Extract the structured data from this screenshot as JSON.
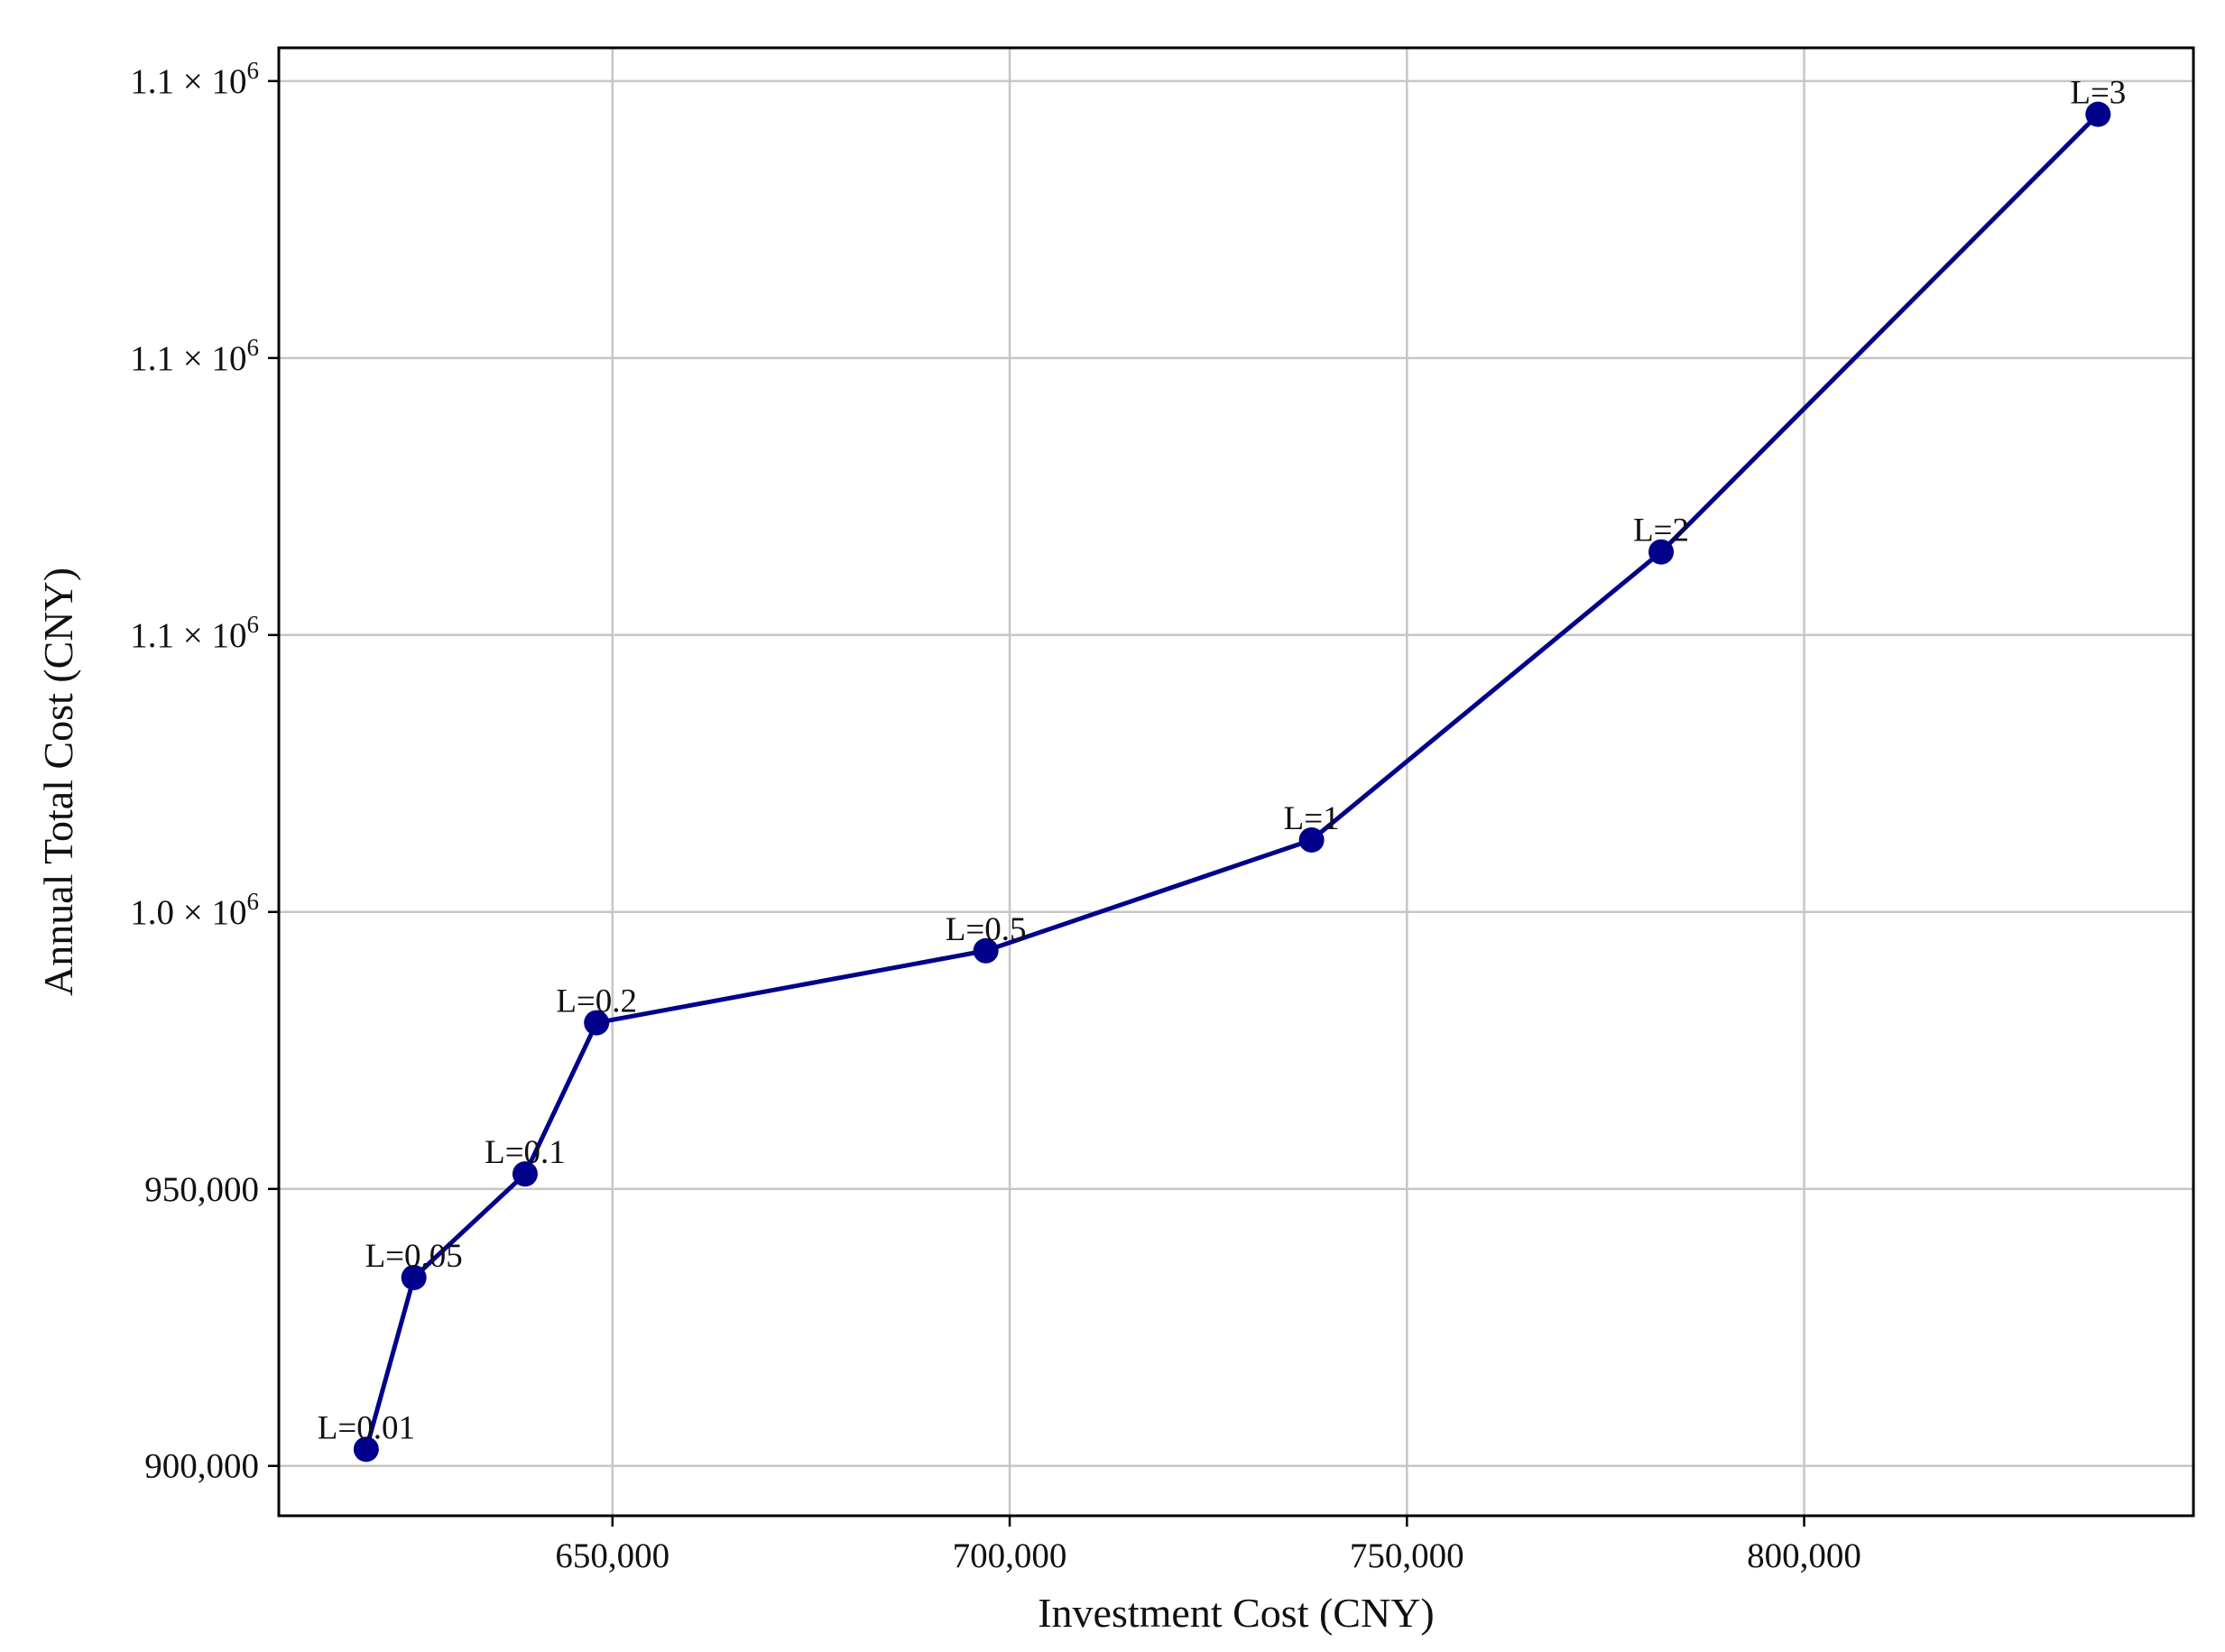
{
  "chart_data": {
    "type": "line",
    "xlabel": "Investment Cost (CNY)",
    "ylabel": "Annual Total Cost (CNY)",
    "xlim": [
      608000,
      849000
    ],
    "ylim": [
      891000,
      1156000
    ],
    "grid": true,
    "x_ticks": [
      {
        "value": 650000,
        "label": "650,000"
      },
      {
        "value": 700000,
        "label": "700,000"
      },
      {
        "value": 750000,
        "label": "750,000"
      },
      {
        "value": 800000,
        "label": "800,000"
      }
    ],
    "y_ticks": [
      {
        "value": 900000,
        "label": "900,000"
      },
      {
        "value": 950000,
        "label": "950,000"
      },
      {
        "value": 1000000,
        "label": "1.0 × 10",
        "exp": "6"
      },
      {
        "value": 1050000,
        "label": "1.1 × 10",
        "exp": "6"
      },
      {
        "value": 1100000,
        "label": "1.1 × 10",
        "exp": "6"
      },
      {
        "value": 1150000,
        "label": "1.1 × 10",
        "exp": "6"
      }
    ],
    "series": [
      {
        "color": "#00008b",
        "points": [
          {
            "x": 619000,
            "y": 903000,
            "label": "L=0.01"
          },
          {
            "x": 625000,
            "y": 934000,
            "label": "L=0.05"
          },
          {
            "x": 639000,
            "y": 952700,
            "label": "L=0.1"
          },
          {
            "x": 648000,
            "y": 980000,
            "label": "L=0.2"
          },
          {
            "x": 697000,
            "y": 993000,
            "label": "L=0.5"
          },
          {
            "x": 738000,
            "y": 1013000,
            "label": "L=1"
          },
          {
            "x": 782000,
            "y": 1065000,
            "label": "L=2"
          },
          {
            "x": 837000,
            "y": 1144000,
            "label": "L=3"
          }
        ]
      }
    ]
  }
}
